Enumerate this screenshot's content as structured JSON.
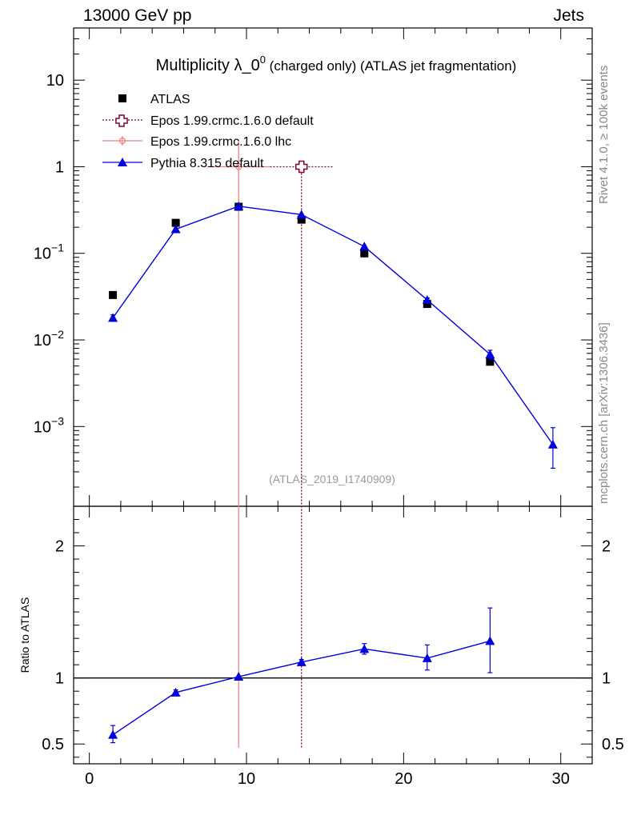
{
  "header": {
    "left": "13000 GeV pp",
    "right": "Jets"
  },
  "side_labels": {
    "top": "Rivet 4.1.0, ≥ 100k events",
    "bottom": "mcplots.cern.ch [arXiv:1306.3436]"
  },
  "chart_data": [
    {
      "type": "scatter",
      "title_main": "Multiplicity λ_0",
      "title_sup": "0",
      "title_rest": " (charged only) (ATLAS jet fragmentation)",
      "watermark": "(ATLAS_2019_I1740909)",
      "yscale": "log",
      "xlim": [
        -1,
        32
      ],
      "ylim": [
        0.00012,
        40
      ],
      "legend_position": "top-left",
      "y_ticks": [
        {
          "value": 10,
          "mant": "10",
          "exp": ""
        },
        {
          "value": 1,
          "mant": "1",
          "exp": ""
        },
        {
          "value": 0.1,
          "mant": "10",
          "exp": "−1"
        },
        {
          "value": 0.01,
          "mant": "10",
          "exp": "−2"
        },
        {
          "value": 0.001,
          "mant": "10",
          "exp": "−3"
        }
      ],
      "series": [
        {
          "name": "ATLAS",
          "style": "data",
          "color": "#000000",
          "x": [
            1.5,
            5.5,
            9.5,
            13.5,
            17.5,
            21.5,
            25.5
          ],
          "y": [
            0.033,
            0.225,
            0.345,
            0.245,
            0.1,
            0.026,
            0.0056
          ]
        },
        {
          "name": "Epos 1.99.crmc.1.6.0 default",
          "style": "dotted-cross",
          "color": "#800033",
          "x": [
            13.5
          ],
          "y": [
            1.0
          ],
          "xerr": [
            2.0
          ]
        },
        {
          "name": "Epos 1.99.crmc.1.6.0 lhc",
          "style": "solid-cross",
          "color": "#f08080",
          "x": [
            9.5
          ],
          "y": [
            1.0
          ],
          "xerr": [
            2.0
          ]
        },
        {
          "name": "Pythia 8.315 default",
          "style": "triangle-line",
          "color": "#0000dd",
          "x": [
            1.5,
            5.5,
            9.5,
            13.5,
            17.5,
            21.5,
            25.5,
            29.5
          ],
          "y": [
            0.018,
            0.19,
            0.35,
            0.28,
            0.12,
            0.029,
            0.0068,
            0.00062
          ],
          "yerr_low": [
            0.0015,
            0.006,
            0.008,
            0.007,
            0.004,
            0.0015,
            0.0008,
            0.00029
          ],
          "yerr_high": [
            0.0015,
            0.006,
            0.008,
            0.007,
            0.004,
            0.0015,
            0.0008,
            0.00035
          ]
        }
      ]
    },
    {
      "type": "line",
      "ylabel": "Ratio to ATLAS",
      "xlim": [
        -1,
        32
      ],
      "ylim": [
        0.35,
        2.3
      ],
      "y_ticks": [
        0.5,
        1,
        2
      ],
      "x_ticks": [
        0,
        10,
        20,
        30
      ],
      "reference": 1,
      "series": [
        {
          "name": "Pythia 8.315 default",
          "color": "#0000dd",
          "x": [
            1.5,
            5.5,
            9.5,
            13.5,
            17.5,
            21.5,
            25.5
          ],
          "y": [
            0.57,
            0.89,
            1.01,
            1.12,
            1.22,
            1.15,
            1.28
          ],
          "yerr_low": [
            0.06,
            0.02,
            0.01,
            0.02,
            0.04,
            0.09,
            0.24
          ],
          "yerr_high": [
            0.07,
            0.02,
            0.01,
            0.02,
            0.04,
            0.1,
            0.25
          ]
        }
      ]
    }
  ]
}
